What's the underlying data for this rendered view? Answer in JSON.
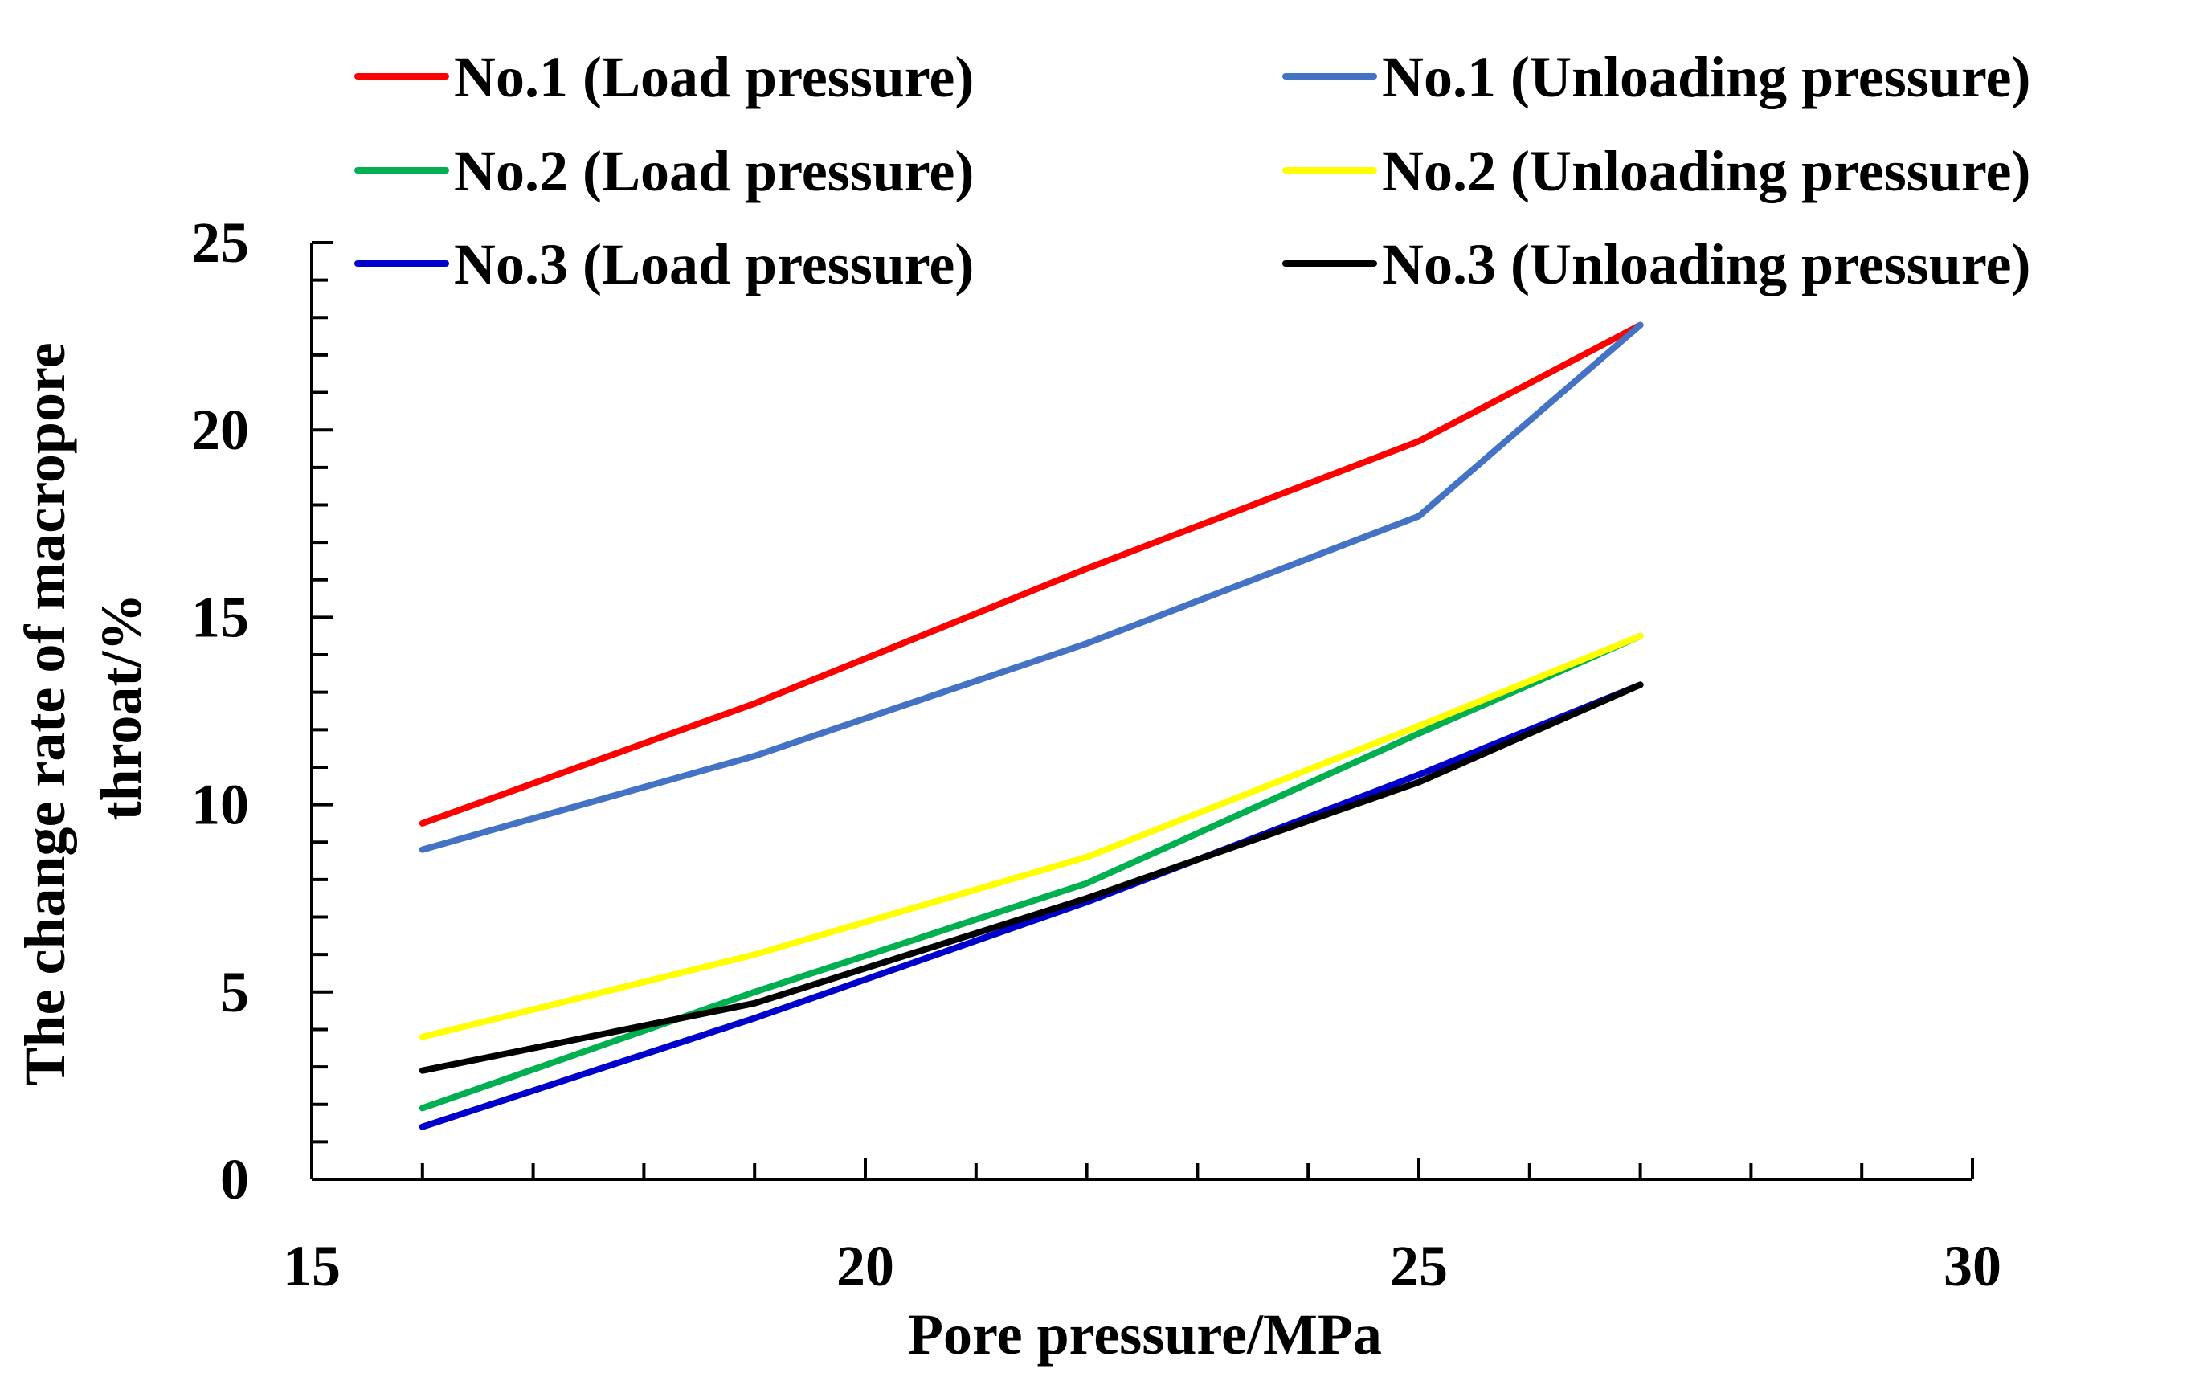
{
  "chart_data": {
    "type": "line",
    "title": "",
    "xlabel": "Pore pressure/MPa",
    "ylabel_lines": [
      "The change rate of macropore",
      "throat/%"
    ],
    "xlim": [
      15,
      30
    ],
    "ylim": [
      0,
      25
    ],
    "x_ticks": [
      15,
      20,
      25,
      30
    ],
    "y_ticks": [
      0,
      5,
      10,
      15,
      20,
      25
    ],
    "x_minor_step": 1,
    "y_minor_step": 1,
    "grid": false,
    "legend_position": "top",
    "series": [
      {
        "name": "No.1 (Load pressure)",
        "color": "#ff0000",
        "points": [
          [
            16,
            9.5
          ],
          [
            19,
            12.7
          ],
          [
            22,
            16.3
          ],
          [
            25,
            19.7
          ],
          [
            27,
            22.8
          ]
        ]
      },
      {
        "name": "No.1 (Unloading pressure)",
        "color": "#4472c4",
        "points": [
          [
            16,
            8.8
          ],
          [
            19,
            11.3
          ],
          [
            22,
            14.3
          ],
          [
            25,
            17.7
          ],
          [
            27,
            22.8
          ]
        ]
      },
      {
        "name": "No.2 (Load pressure)",
        "color": "#00b050",
        "points": [
          [
            16,
            1.9
          ],
          [
            19,
            5.0
          ],
          [
            22,
            7.9
          ],
          [
            25,
            11.9
          ],
          [
            27,
            14.5
          ]
        ]
      },
      {
        "name": "No.2 (Unloading pressure)",
        "color": "#ffff00",
        "points": [
          [
            16,
            3.8
          ],
          [
            19,
            6.0
          ],
          [
            22,
            8.6
          ],
          [
            25,
            12.1
          ],
          [
            27,
            14.5
          ]
        ]
      },
      {
        "name": "No.3 (Load pressure)",
        "color": "#0000cc",
        "points": [
          [
            16,
            1.4
          ],
          [
            19,
            4.3
          ],
          [
            22,
            7.4
          ],
          [
            25,
            10.8
          ],
          [
            27,
            13.2
          ]
        ]
      },
      {
        "name": "No.3 (Unloading pressure)",
        "color": "#000000",
        "points": [
          [
            16,
            2.9
          ],
          [
            19,
            4.7
          ],
          [
            22,
            7.5
          ],
          [
            25,
            10.6
          ],
          [
            27,
            13.2
          ]
        ]
      }
    ]
  }
}
